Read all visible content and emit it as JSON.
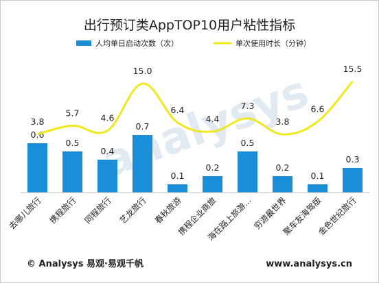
{
  "chart_data": {
    "type": "bar",
    "title": "出行预订类AppTOP10用户粘性指标",
    "categories": [
      "去哪儿旅行",
      "携程旅行",
      "同程旅行",
      "艺龙旅行",
      "春秋旅游",
      "携程企业商旅",
      "海在路上旅游...",
      "穷游最世界",
      "聚车友海驾版",
      "金色世纪旅行"
    ],
    "series": [
      {
        "name": "人均单日启动次数（次）",
        "type": "bar",
        "color": "#1a8fd8",
        "values": [
          0.6,
          0.5,
          0.4,
          0.7,
          0.1,
          0.2,
          0.5,
          0.2,
          0.1,
          0.3
        ]
      },
      {
        "name": "单次使用时长（分钟）",
        "type": "line",
        "color": "#f0e81e",
        "values": [
          3.8,
          5.7,
          4.6,
          15.0,
          6.4,
          4.4,
          7.3,
          3.8,
          6.6,
          15.5
        ]
      }
    ],
    "legend_position": "top",
    "grid": false
  },
  "watermark": "analysys",
  "footer": {
    "left": "© Analysys 易观·易观千帆",
    "right": "www.analysys.cn"
  }
}
